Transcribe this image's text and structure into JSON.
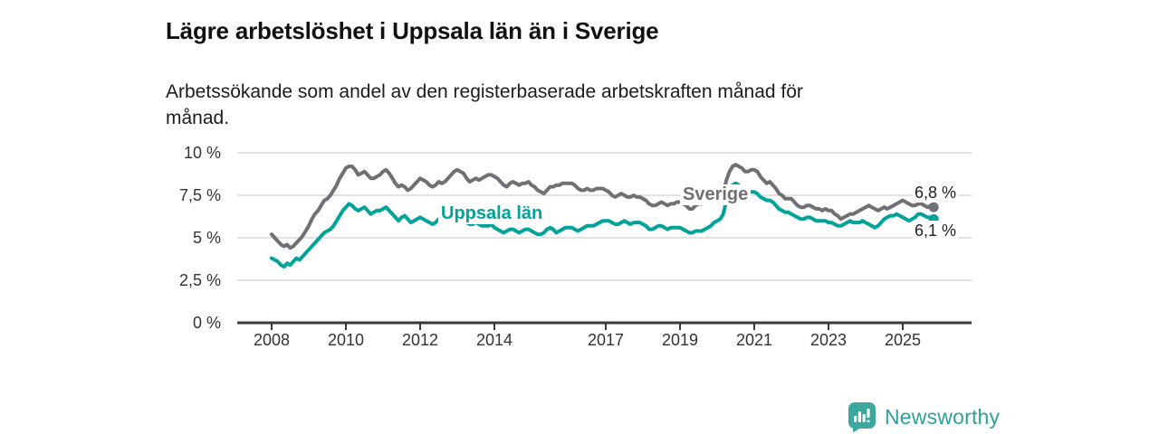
{
  "header": {
    "title": "Lägre arbetslöshet i Uppsala län än i Sverige",
    "subtitle_lines": [
      "Arbetssökande som andel av den registerbaserade arbetskraften månad för",
      "månad."
    ]
  },
  "footer": {
    "brand": "Newsworthy",
    "logo_icon": "bar-chart-pin-icon",
    "logo_color": "#3aa89f",
    "brand_text_color": "#2ba39a"
  },
  "colors": {
    "grid": "#d9d9d9",
    "axis": "#3a3a3a",
    "axis_text": "#333333",
    "title_text": "#111111",
    "background": "#ffffff"
  },
  "chart_data": {
    "type": "line",
    "title": "Lägre arbetslöshet i Uppsala län än i Sverige",
    "subtitle": "Arbetssökande som andel av den registerbaserade arbetskraften månad för månad.",
    "unit": "%",
    "grid": true,
    "legend": "inline-labels",
    "x_axis": {
      "start_year": 2008,
      "step_months": 1,
      "tick_years": [
        2008,
        2010,
        2012,
        2014,
        2017,
        2019,
        2021,
        2023,
        2025
      ],
      "tick_labels": [
        "2008",
        "2010",
        "2012",
        "2014",
        "2017",
        "2019",
        "2021",
        "2023",
        "2025"
      ]
    },
    "y_axis": {
      "min": 0,
      "max": 10,
      "tick_values": [
        0,
        2.5,
        5,
        7.5,
        10
      ],
      "tick_labels": [
        "0 %",
        "2,5 %",
        "5 %",
        "7,5 %",
        "10 %"
      ]
    },
    "series": [
      {
        "name": "Sverige",
        "color": "#706f75",
        "end_label": "6,8 %",
        "final_value": 6.8,
        "values": [
          5.2,
          5.0,
          4.8,
          4.6,
          4.5,
          4.6,
          4.4,
          4.5,
          4.7,
          4.9,
          5.1,
          5.4,
          5.7,
          6.1,
          6.4,
          6.6,
          6.9,
          7.2,
          7.3,
          7.5,
          7.8,
          8.1,
          8.5,
          8.8,
          9.1,
          9.2,
          9.2,
          9.0,
          8.7,
          8.8,
          8.9,
          8.7,
          8.5,
          8.5,
          8.6,
          8.7,
          8.9,
          9.0,
          8.8,
          8.5,
          8.2,
          8.0,
          8.1,
          8.0,
          7.8,
          7.9,
          8.1,
          8.3,
          8.5,
          8.4,
          8.3,
          8.1,
          8.0,
          8.1,
          8.3,
          8.2,
          8.3,
          8.5,
          8.7,
          8.9,
          9.0,
          8.9,
          8.8,
          8.5,
          8.3,
          8.4,
          8.5,
          8.4,
          8.5,
          8.6,
          8.7,
          8.7,
          8.6,
          8.5,
          8.3,
          8.1,
          8.0,
          8.2,
          8.3,
          8.2,
          8.1,
          8.2,
          8.2,
          8.3,
          8.1,
          8.0,
          7.8,
          7.7,
          7.6,
          7.8,
          8.0,
          8.0,
          8.1,
          8.1,
          8.2,
          8.2,
          8.2,
          8.2,
          8.1,
          7.9,
          7.8,
          7.8,
          7.9,
          7.8,
          7.8,
          7.9,
          7.9,
          7.9,
          7.8,
          7.7,
          7.5,
          7.4,
          7.5,
          7.6,
          7.5,
          7.4,
          7.4,
          7.5,
          7.4,
          7.4,
          7.3,
          7.2,
          7.0,
          6.9,
          6.9,
          7.0,
          7.1,
          7.0,
          6.9,
          7.0,
          7.0,
          7.1,
          7.1,
          7.0,
          6.9,
          6.7,
          6.7,
          6.9,
          7.0,
          7.0,
          7.1,
          7.1,
          7.2,
          7.2,
          7.3,
          7.4,
          7.6,
          8.4,
          8.9,
          9.2,
          9.3,
          9.2,
          9.1,
          8.9,
          8.9,
          9.0,
          9.0,
          8.9,
          8.6,
          8.4,
          8.2,
          8.3,
          8.1,
          7.9,
          7.6,
          7.5,
          7.3,
          7.3,
          7.3,
          7.1,
          6.9,
          6.8,
          6.8,
          6.9,
          6.9,
          6.8,
          6.7,
          6.7,
          6.6,
          6.7,
          6.6,
          6.6,
          6.4,
          6.3,
          6.1,
          6.2,
          6.3,
          6.4,
          6.4,
          6.5,
          6.6,
          6.7,
          6.8,
          6.9,
          6.8,
          6.7,
          6.6,
          6.7,
          6.8,
          6.7,
          6.8,
          6.9,
          7.0,
          7.1,
          7.2,
          7.1,
          7.0,
          6.9,
          6.9,
          7.0,
          7.0,
          6.9,
          6.8,
          6.9,
          6.8
        ]
      },
      {
        "name": "Uppsala län",
        "color": "#00a39a",
        "end_label": "6,1 %",
        "final_value": 6.1,
        "values": [
          3.8,
          3.7,
          3.6,
          3.4,
          3.3,
          3.5,
          3.4,
          3.6,
          3.8,
          3.7,
          3.9,
          4.1,
          4.3,
          4.5,
          4.7,
          4.9,
          5.1,
          5.3,
          5.4,
          5.5,
          5.7,
          6.0,
          6.3,
          6.6,
          6.8,
          7.0,
          6.9,
          6.7,
          6.6,
          6.7,
          6.8,
          6.6,
          6.4,
          6.5,
          6.6,
          6.6,
          6.7,
          6.8,
          6.6,
          6.4,
          6.2,
          6.0,
          6.2,
          6.3,
          6.1,
          5.9,
          6.0,
          6.1,
          6.2,
          6.1,
          6.0,
          5.9,
          5.8,
          5.9,
          6.1,
          6.0,
          5.9,
          6.0,
          6.1,
          6.2,
          6.3,
          6.2,
          6.1,
          5.9,
          5.8,
          5.8,
          5.9,
          5.8,
          5.7,
          5.7,
          5.7,
          5.8,
          5.6,
          5.5,
          5.4,
          5.3,
          5.4,
          5.5,
          5.5,
          5.4,
          5.3,
          5.4,
          5.5,
          5.5,
          5.4,
          5.3,
          5.2,
          5.2,
          5.3,
          5.5,
          5.6,
          5.5,
          5.3,
          5.4,
          5.5,
          5.6,
          5.6,
          5.6,
          5.5,
          5.4,
          5.5,
          5.6,
          5.7,
          5.7,
          5.7,
          5.8,
          5.9,
          6.0,
          6.0,
          6.0,
          5.9,
          5.8,
          5.8,
          5.9,
          6.0,
          5.9,
          5.8,
          5.9,
          5.9,
          5.9,
          5.8,
          5.7,
          5.5,
          5.5,
          5.6,
          5.7,
          5.7,
          5.6,
          5.5,
          5.6,
          5.6,
          5.6,
          5.6,
          5.5,
          5.4,
          5.3,
          5.3,
          5.4,
          5.4,
          5.4,
          5.5,
          5.6,
          5.7,
          5.9,
          6.0,
          6.1,
          6.4,
          7.2,
          7.7,
          8.1,
          8.2,
          8.1,
          7.9,
          7.7,
          7.7,
          7.7,
          7.7,
          7.6,
          7.4,
          7.3,
          7.2,
          7.2,
          7.1,
          6.9,
          6.7,
          6.6,
          6.5,
          6.5,
          6.4,
          6.3,
          6.2,
          6.1,
          6.1,
          6.2,
          6.2,
          6.1,
          6.0,
          6.0,
          6.0,
          6.0,
          5.9,
          5.9,
          5.8,
          5.7,
          5.7,
          5.8,
          5.9,
          6.0,
          5.9,
          5.9,
          5.9,
          6.0,
          5.9,
          5.8,
          5.7,
          5.6,
          5.7,
          5.9,
          6.1,
          6.2,
          6.3,
          6.3,
          6.4,
          6.3,
          6.2,
          6.1,
          6.0,
          6.1,
          6.2,
          6.4,
          6.4,
          6.3,
          6.2,
          6.2,
          6.1
        ]
      }
    ]
  }
}
